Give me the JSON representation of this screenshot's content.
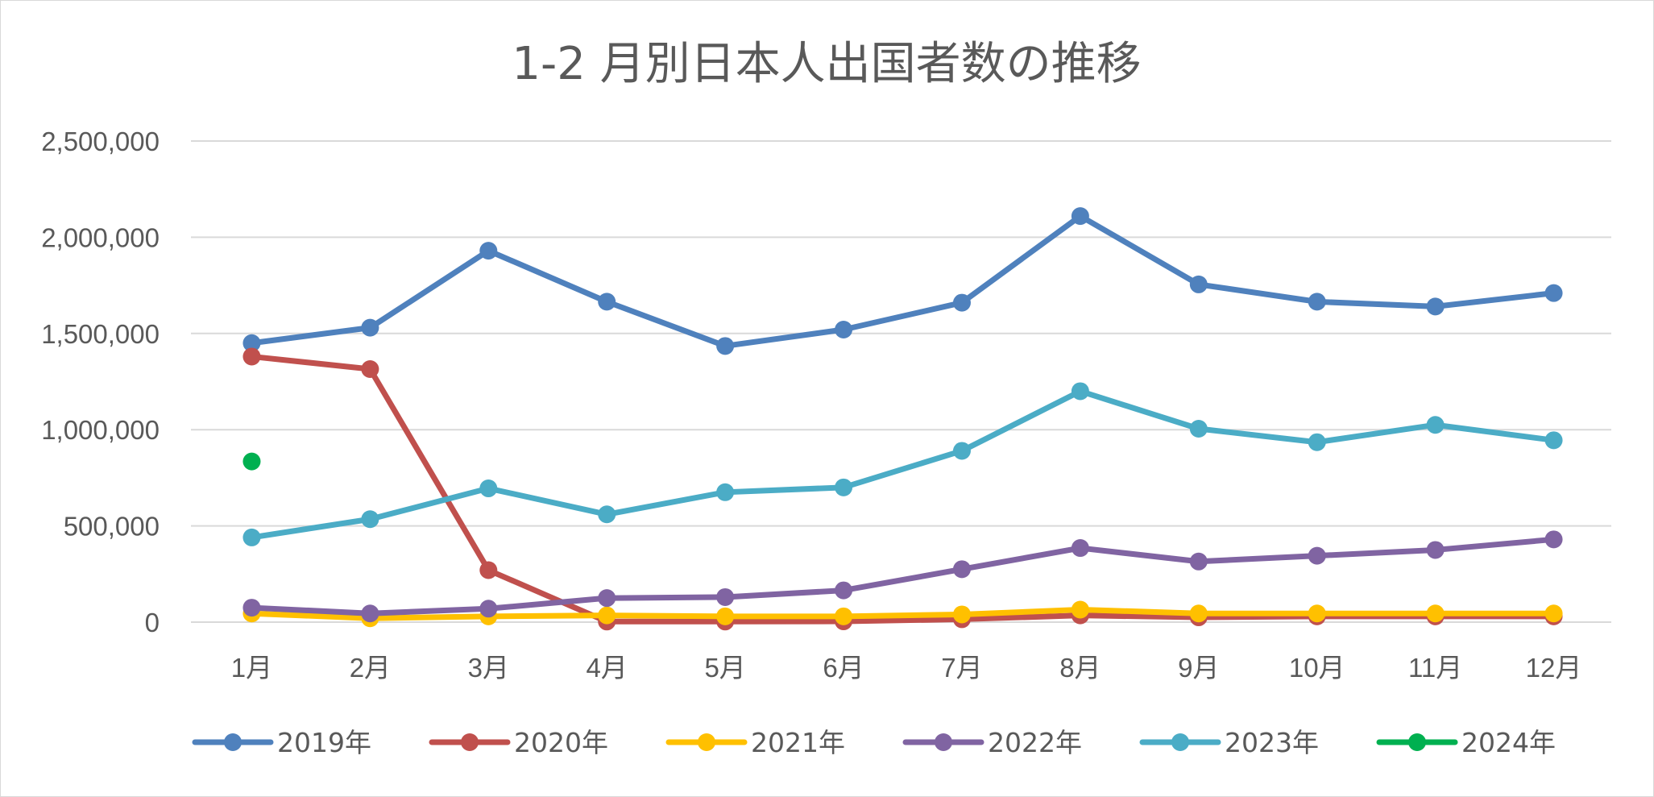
{
  "chart_data": {
    "type": "line",
    "title": "1-2 月別日本人出国者数の推移",
    "categories": [
      "1月",
      "2月",
      "3月",
      "4月",
      "5月",
      "6月",
      "7月",
      "8月",
      "9月",
      "10月",
      "11月",
      "12月"
    ],
    "yticks": [
      "0",
      "500,000",
      "1,000,000",
      "1,500,000",
      "2,000,000",
      "2,500,000"
    ],
    "ylim": [
      0,
      2500000
    ],
    "grid": true,
    "legend_position": "bottom",
    "series": [
      {
        "name": "2019年",
        "color": "#4f81bd",
        "values": [
          1450000,
          1530000,
          1930000,
          1665000,
          1435000,
          1520000,
          1660000,
          2110000,
          1755000,
          1665000,
          1640000,
          1710000
        ]
      },
      {
        "name": "2020年",
        "color": "#c0504d",
        "values": [
          1380000,
          1315000,
          270000,
          3000,
          3000,
          4000,
          15000,
          35000,
          25000,
          30000,
          30000,
          30000
        ]
      },
      {
        "name": "2021年",
        "color": "#ffc000",
        "values": [
          45000,
          20000,
          30000,
          35000,
          30000,
          30000,
          40000,
          65000,
          45000,
          45000,
          45000,
          45000
        ]
      },
      {
        "name": "2022年",
        "color": "#8064a2",
        "values": [
          75000,
          45000,
          70000,
          125000,
          130000,
          165000,
          275000,
          385000,
          315000,
          345000,
          375000,
          430000
        ]
      },
      {
        "name": "2023年",
        "color": "#4bacc6",
        "values": [
          440000,
          535000,
          695000,
          560000,
          675000,
          700000,
          890000,
          1200000,
          1005000,
          935000,
          1025000,
          945000
        ]
      },
      {
        "name": "2024年",
        "color": "#00b050",
        "values": [
          835000,
          null,
          null,
          null,
          null,
          null,
          null,
          null,
          null,
          null,
          null,
          null
        ]
      }
    ]
  }
}
